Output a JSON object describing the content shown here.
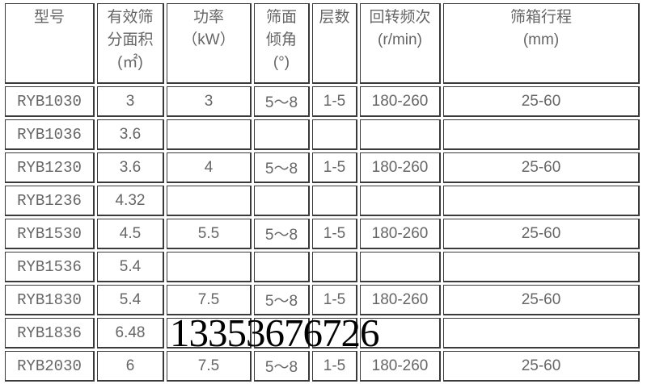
{
  "headers": [
    "型号",
    "有效筛\n分面积\n(㎡)",
    "功率\n（kW）",
    "筛面\n倾角\n(°)",
    "层数",
    "回转频次\n(r/min)",
    "筛箱行程\n(mm)"
  ],
  "rows": [
    [
      "RYB1030",
      "3",
      "3",
      "5～8",
      "1-5",
      "180-260",
      "25-60"
    ],
    [
      "RYB1036",
      "3.6",
      "",
      "",
      "",
      "",
      ""
    ],
    [
      "RYB1230",
      "3.6",
      "4",
      "5～8",
      "1-5",
      "180-260",
      "25-60"
    ],
    [
      "RYB1236",
      "4.32",
      "",
      "",
      "",
      "",
      ""
    ],
    [
      "RYB1530",
      "4.5",
      "5.5",
      "5～8",
      "1-5",
      "180-260",
      "25-60"
    ],
    [
      "RYB1536",
      "5.4",
      "",
      "",
      "",
      "",
      ""
    ],
    [
      "RYB1830",
      "5.4",
      "7.5",
      "5～8",
      "1-5",
      "180-260",
      "25-60"
    ],
    [
      "RYB1836",
      "6.48",
      "",
      "",
      "",
      "",
      ""
    ],
    [
      "RYB2030",
      "6",
      "7.5",
      "5～8",
      "1-5",
      "180-260",
      "25-60"
    ]
  ],
  "watermark": "13353676726"
}
